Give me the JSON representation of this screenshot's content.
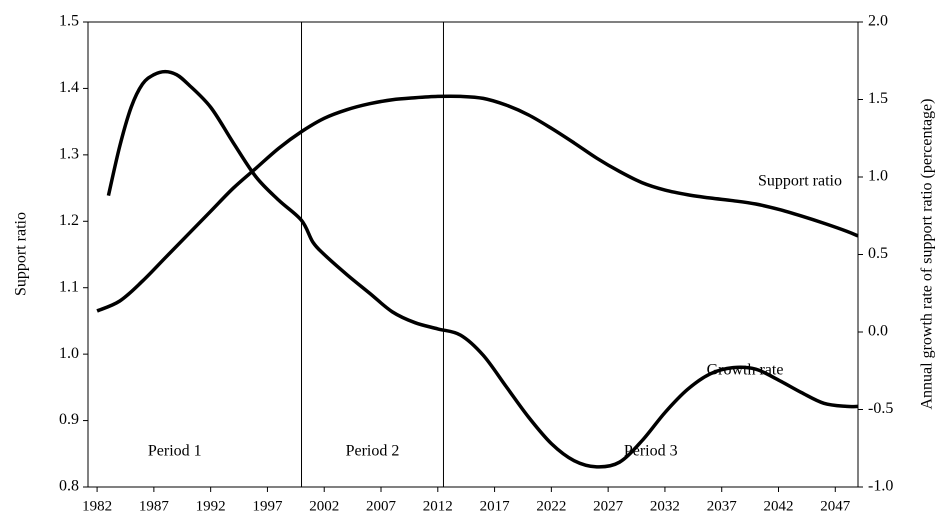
{
  "chart_data": {
    "type": "line",
    "y_label": "Support ratio",
    "y2_label": "Annual growth rate of support ratio (percentage)",
    "xlim": [
      1981.2,
      2049
    ],
    "xticks": [
      1982,
      1987,
      1992,
      1997,
      2002,
      2007,
      2012,
      2017,
      2022,
      2027,
      2032,
      2037,
      2042,
      2047
    ],
    "ylim": [
      0.8,
      1.5
    ],
    "yticks": [
      {
        "value": 0.8,
        "label": "0.8"
      },
      {
        "value": 0.9,
        "label": "0.9"
      },
      {
        "value": 1.0,
        "label": "1.0"
      },
      {
        "value": 1.1,
        "label": "1.1"
      },
      {
        "value": 1.2,
        "label": "1.2"
      },
      {
        "value": 1.3,
        "label": "1.3"
      },
      {
        "value": 1.4,
        "label": "1.4"
      },
      {
        "value": 1.5,
        "label": "1.5"
      }
    ],
    "y2lim": [
      -1.0,
      2.0
    ],
    "y2ticks": [
      {
        "value": -1.0,
        "label": "-1.0"
      },
      {
        "value": -0.5,
        "label": "-0.5"
      },
      {
        "value": 0.0,
        "label": "0.0"
      },
      {
        "value": 0.5,
        "label": "0.5"
      },
      {
        "value": 1.0,
        "label": "1.0"
      },
      {
        "value": 1.5,
        "label": "1.5"
      },
      {
        "value": 2.0,
        "label": "2.0"
      }
    ],
    "period_boundaries": [
      2000,
      2012.5
    ],
    "periods": [
      "Period 1",
      "Period 2",
      "Period 3"
    ],
    "series": [
      {
        "name": "Support ratio",
        "color": "#000000",
        "x": [
          1982,
          1984,
          1986,
          1988,
          1990,
          1992,
          1994,
          1996,
          1998,
          2000,
          2002,
          2004,
          2006,
          2008,
          2010,
          2012,
          2014,
          2016,
          2018,
          2020,
          2022,
          2024,
          2026,
          2028,
          2030,
          2032,
          2034,
          2036,
          2038,
          2040,
          2042,
          2044,
          2046,
          2048,
          2049
        ],
        "values": [
          1.065,
          1.08,
          1.11,
          1.145,
          1.18,
          1.215,
          1.25,
          1.28,
          1.31,
          1.335,
          1.355,
          1.368,
          1.377,
          1.383,
          1.386,
          1.388,
          1.388,
          1.385,
          1.375,
          1.36,
          1.34,
          1.318,
          1.295,
          1.275,
          1.258,
          1.247,
          1.24,
          1.235,
          1.231,
          1.226,
          1.218,
          1.208,
          1.197,
          1.185,
          1.178
        ]
      },
      {
        "name": "Growth rate",
        "color": "#000000",
        "axis": "y2",
        "x": [
          1983,
          1984,
          1985,
          1986,
          1987,
          1988,
          1989,
          1990,
          1992,
          1994,
          1996,
          1998,
          2000,
          2001,
          2002,
          2004,
          2006,
          2008,
          2010,
          2012,
          2014,
          2016,
          2018,
          2020,
          2022,
          2024,
          2026,
          2028,
          2030,
          2032,
          2034,
          2036,
          2038,
          2040,
          2042,
          2044,
          2046,
          2048,
          2049
        ],
        "values": [
          0.88,
          1.2,
          1.45,
          1.6,
          1.66,
          1.68,
          1.66,
          1.6,
          1.45,
          1.22,
          1.0,
          0.85,
          0.72,
          0.58,
          0.5,
          0.37,
          0.25,
          0.13,
          0.06,
          0.02,
          -0.02,
          -0.15,
          -0.35,
          -0.55,
          -0.72,
          -0.83,
          -0.87,
          -0.84,
          -0.7,
          -0.52,
          -0.37,
          -0.27,
          -0.23,
          -0.24,
          -0.31,
          -0.39,
          -0.46,
          -0.48,
          -0.48
        ]
      }
    ]
  }
}
